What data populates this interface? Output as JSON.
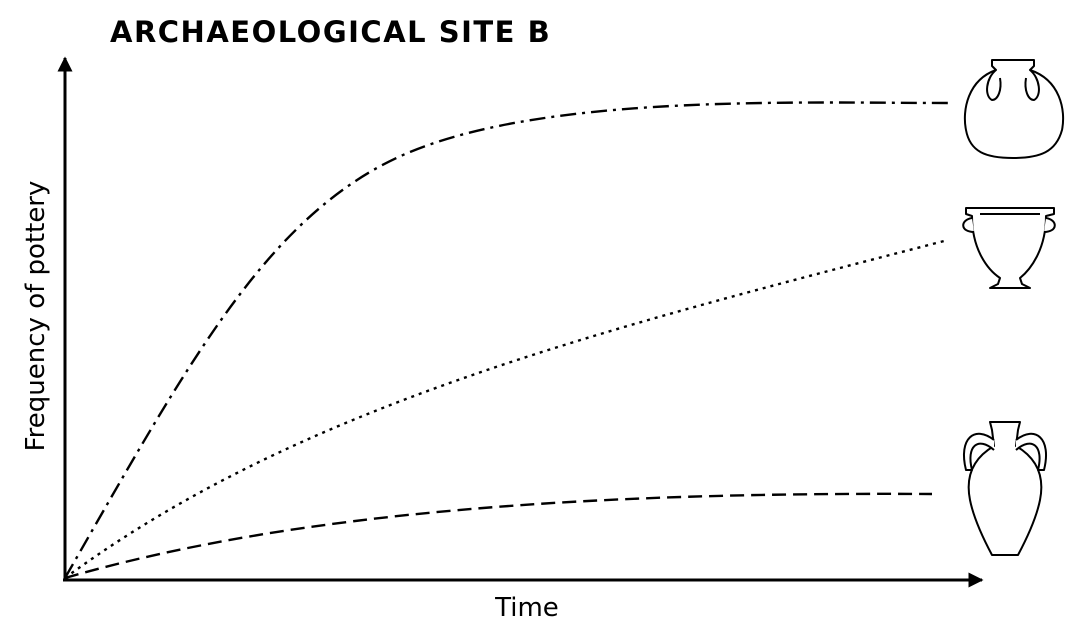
{
  "title": "ARCHAEOLOGICAL SITE B",
  "x_label": "Time",
  "y_label": "Frequency of pottery"
}
